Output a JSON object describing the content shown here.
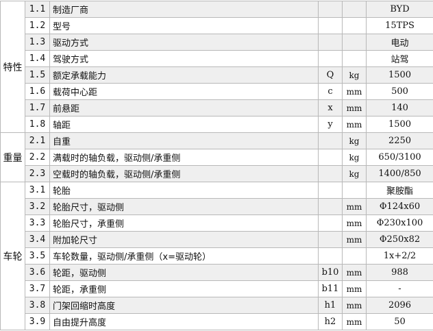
{
  "groups": [
    {
      "label": "特性",
      "rows": [
        {
          "no": "1.1",
          "desc": "制造厂商",
          "sym": "",
          "unit": "",
          "val": "BYD"
        },
        {
          "no": "1.2",
          "desc": "型号",
          "sym": "",
          "unit": "",
          "val": "15TPS"
        },
        {
          "no": "1.3",
          "desc": "驱动方式",
          "sym": "",
          "unit": "",
          "val": "电动"
        },
        {
          "no": "1.4",
          "desc": "驾驶方式",
          "sym": "",
          "unit": "",
          "val": "站驾"
        },
        {
          "no": "1.5",
          "desc": "额定承载能力",
          "sym": "Q",
          "unit": "kg",
          "val": "1500"
        },
        {
          "no": "1.6",
          "desc": "载荷中心距",
          "sym": "c",
          "unit": "mm",
          "val": "500"
        },
        {
          "no": "1.7",
          "desc": "前悬距",
          "sym": "x",
          "unit": "mm",
          "val": "140"
        },
        {
          "no": "1.8",
          "desc": "轴距",
          "sym": "y",
          "unit": "mm",
          "val": "1500"
        }
      ]
    },
    {
      "label": "重量",
      "rows": [
        {
          "no": "2.1",
          "desc": "自重",
          "sym": "",
          "unit": "kg",
          "val": "2250"
        },
        {
          "no": "2.2",
          "desc": "满载时的轴负载，驱动侧/承重侧",
          "sym": "",
          "unit": "kg",
          "val": "650/3100"
        },
        {
          "no": "2.3",
          "desc": "空载时的轴负载，驱动侧/承重侧",
          "sym": "",
          "unit": "kg",
          "val": "1400/850"
        }
      ]
    },
    {
      "label": "车轮",
      "rows": [
        {
          "no": "3.1",
          "desc": "轮胎",
          "sym": "",
          "unit": "",
          "val": "聚胺酯"
        },
        {
          "no": "3.2",
          "desc": "轮胎尺寸，驱动侧",
          "sym": "",
          "unit": "mm",
          "val": "Φ124x60"
        },
        {
          "no": "3.3",
          "desc": "轮胎尺寸，承重侧",
          "sym": "",
          "unit": "mm",
          "val": "Φ230x100"
        },
        {
          "no": "3.4",
          "desc": "附加轮尺寸",
          "sym": "",
          "unit": "mm",
          "val": "Φ250x82"
        },
        {
          "no": "3.5",
          "desc": "车轮数量，驱动侧/承重侧（x=驱动轮）",
          "sym": "",
          "unit": "",
          "val": "1x+2/2"
        },
        {
          "no": "3.6",
          "desc": "轮距，驱动侧",
          "sym": "b10",
          "unit": "mm",
          "val": "988"
        },
        {
          "no": "3.7",
          "desc": "轮距，承重侧",
          "sym": "b11",
          "unit": "mm",
          "val": "-"
        },
        {
          "no": "3.8",
          "desc": "门架回缩时高度",
          "sym": "h1",
          "unit": "mm",
          "val": "2096"
        },
        {
          "no": "3.9",
          "desc": "自由提升高度",
          "sym": "h2",
          "unit": "mm",
          "val": "50"
        }
      ]
    }
  ]
}
